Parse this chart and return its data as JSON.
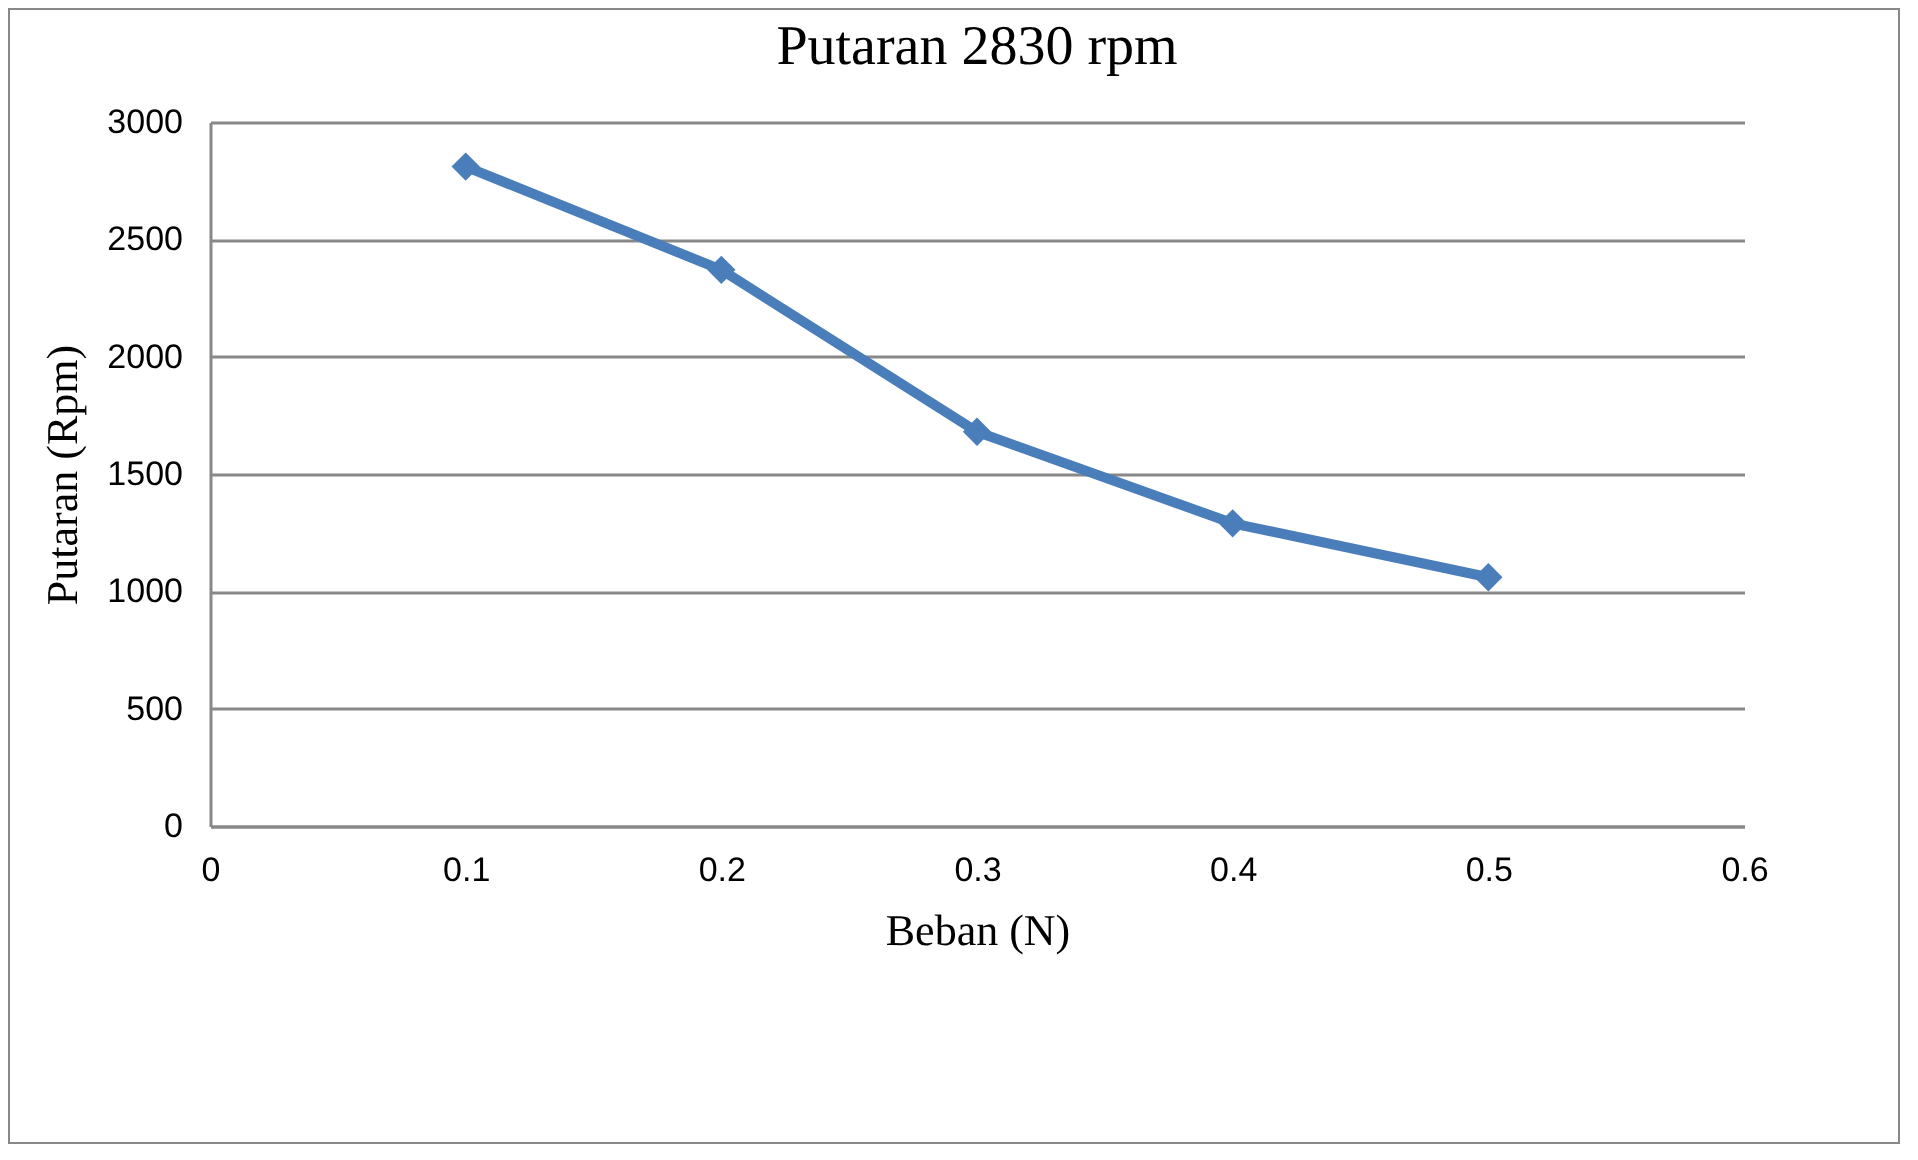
{
  "chart_data": {
    "type": "line",
    "title": "Putaran 2830 rpm",
    "xlabel": "Beban (N)",
    "ylabel": "Putaran (Rpm)",
    "x": [
      0.1,
      0.2,
      0.3,
      0.4,
      0.5
    ],
    "series": [
      {
        "color": "#4a7ebb",
        "values": [
          2810,
          2370,
          1680,
          1290,
          1060
        ]
      }
    ],
    "xlim": [
      0,
      0.6
    ],
    "xticks": [
      0,
      0.1,
      0.2,
      0.3,
      0.4,
      0.5,
      0.6
    ],
    "ylim": [
      0,
      3000
    ],
    "yticks": [
      0,
      500,
      1000,
      1500,
      2000,
      2500,
      3000
    ],
    "grid": "y",
    "legend": false,
    "marker": "diamond",
    "line_style": "solid"
  }
}
